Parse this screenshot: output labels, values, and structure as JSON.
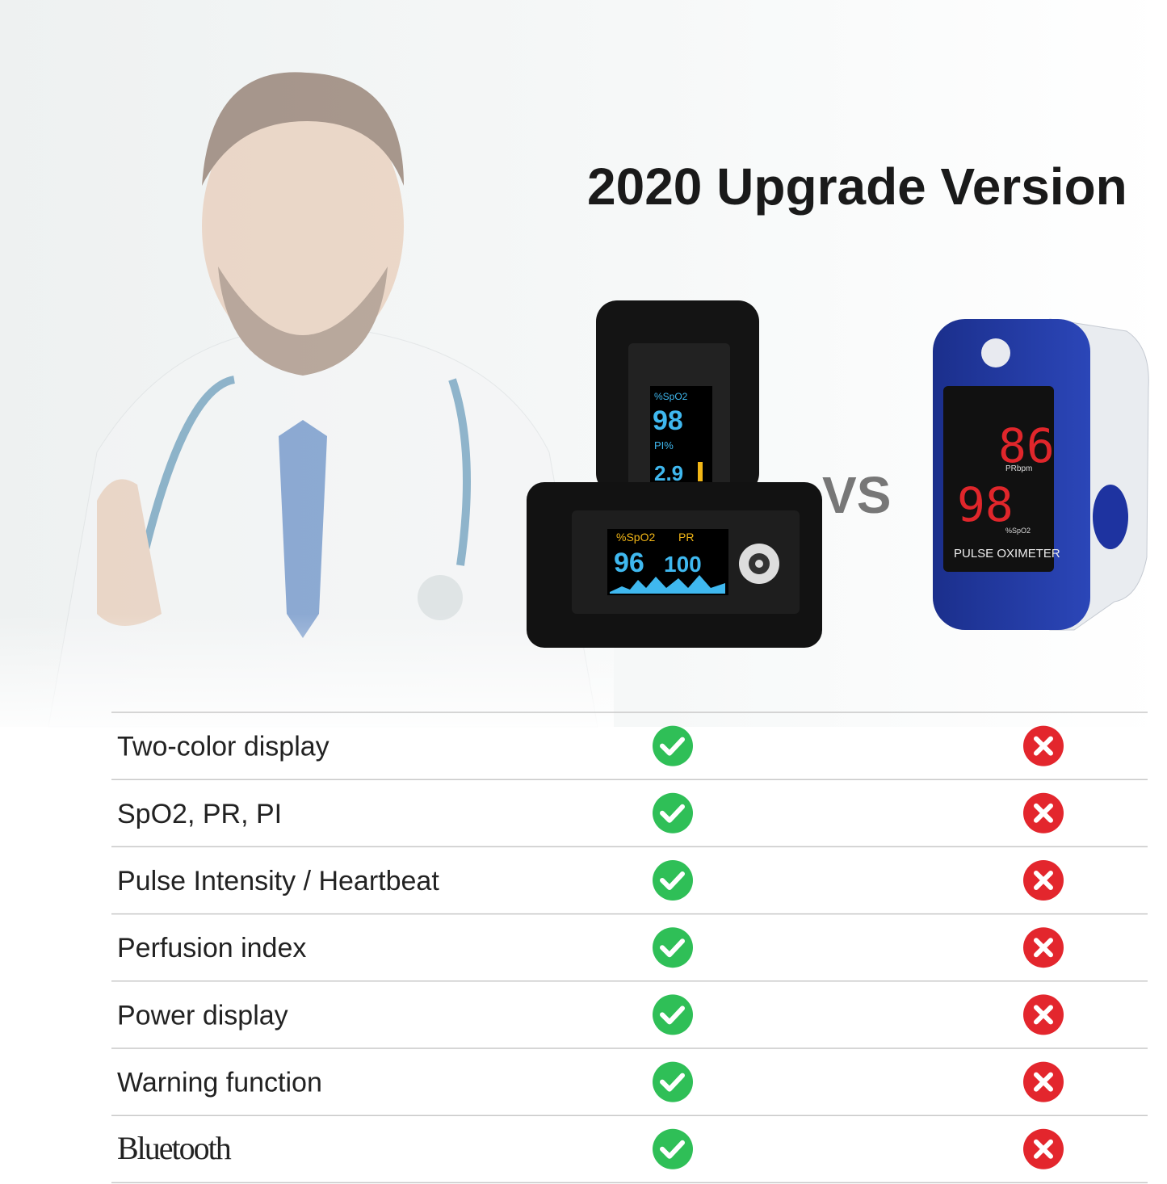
{
  "title": "2020 Upgrade Version",
  "vs": "VS",
  "device_new": {
    "top_screen": [
      "%SpO2",
      "98",
      "PI%",
      "2.9"
    ],
    "front_screen": [
      "%SpO2",
      "PR",
      "96",
      "100"
    ]
  },
  "device_old": {
    "screen": [
      "86",
      "PRbpm",
      "98",
      "%SpO2"
    ],
    "label": "PULSE OXIMETER"
  },
  "table": {
    "rows": [
      "Two-color display",
      "SpO2, PR, PI",
      "Pulse Intensity / Heartbeat",
      "Perfusion index",
      "Power display",
      "Warning function",
      "Bluetooth"
    ]
  }
}
